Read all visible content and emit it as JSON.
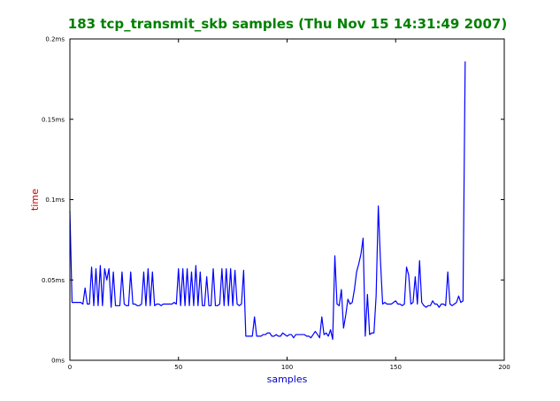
{
  "chart_data": {
    "type": "line",
    "title": "183 tcp_transmit_skb samples (Thu Nov 15 14:31:49 2007)",
    "xlabel": "samples",
    "ylabel": "time",
    "xlim": [
      0,
      200
    ],
    "ylim": [
      0,
      0.2
    ],
    "xticks": [
      0,
      50,
      100,
      150,
      200
    ],
    "xtick_labels": [
      "0",
      "50",
      "100",
      "150",
      "200"
    ],
    "yticks": [
      0,
      0.05,
      0.1,
      0.15,
      0.2
    ],
    "ytick_labels": [
      "0ms",
      "0.05ms",
      "0.1ms",
      "0.15ms",
      "0.2ms"
    ],
    "grid": false,
    "colors": {
      "title": "#008000",
      "xlabel": "#0000cc",
      "ylabel": "#cc0000",
      "line": "#0000ff"
    },
    "series": [
      {
        "values": [
          0.093,
          0.036,
          0.036,
          0.036,
          0.036,
          0.036,
          0.035,
          0.045,
          0.035,
          0.035,
          0.058,
          0.034,
          0.057,
          0.034,
          0.059,
          0.034,
          0.057,
          0.05,
          0.057,
          0.033,
          0.055,
          0.034,
          0.034,
          0.034,
          0.055,
          0.035,
          0.034,
          0.034,
          0.055,
          0.035,
          0.035,
          0.034,
          0.034,
          0.035,
          0.055,
          0.034,
          0.057,
          0.034,
          0.055,
          0.034,
          0.035,
          0.035,
          0.034,
          0.035,
          0.035,
          0.035,
          0.035,
          0.035,
          0.036,
          0.035,
          0.057,
          0.034,
          0.057,
          0.034,
          0.057,
          0.034,
          0.055,
          0.034,
          0.059,
          0.034,
          0.055,
          0.034,
          0.034,
          0.052,
          0.034,
          0.034,
          0.057,
          0.034,
          0.034,
          0.035,
          0.057,
          0.034,
          0.057,
          0.034,
          0.057,
          0.034,
          0.056,
          0.035,
          0.034,
          0.035,
          0.056,
          0.015,
          0.015,
          0.015,
          0.015,
          0.027,
          0.015,
          0.015,
          0.015,
          0.016,
          0.016,
          0.017,
          0.017,
          0.015,
          0.015,
          0.016,
          0.015,
          0.015,
          0.017,
          0.016,
          0.015,
          0.016,
          0.016,
          0.014,
          0.016,
          0.016,
          0.016,
          0.016,
          0.016,
          0.015,
          0.015,
          0.014,
          0.016,
          0.018,
          0.016,
          0.014,
          0.027,
          0.016,
          0.017,
          0.015,
          0.019,
          0.013,
          0.065,
          0.035,
          0.034,
          0.044,
          0.02,
          0.028,
          0.038,
          0.035,
          0.036,
          0.044,
          0.055,
          0.06,
          0.066,
          0.076,
          0.015,
          0.041,
          0.016,
          0.017,
          0.017,
          0.04,
          0.096,
          0.062,
          0.035,
          0.036,
          0.035,
          0.035,
          0.035,
          0.036,
          0.037,
          0.035,
          0.035,
          0.034,
          0.035,
          0.058,
          0.053,
          0.035,
          0.036,
          0.052,
          0.035,
          0.062,
          0.036,
          0.034,
          0.033,
          0.034,
          0.034,
          0.037,
          0.035,
          0.035,
          0.033,
          0.035,
          0.035,
          0.034,
          0.055,
          0.035,
          0.034,
          0.035,
          0.036,
          0.04,
          0.036,
          0.037,
          0.186
        ]
      }
    ]
  }
}
